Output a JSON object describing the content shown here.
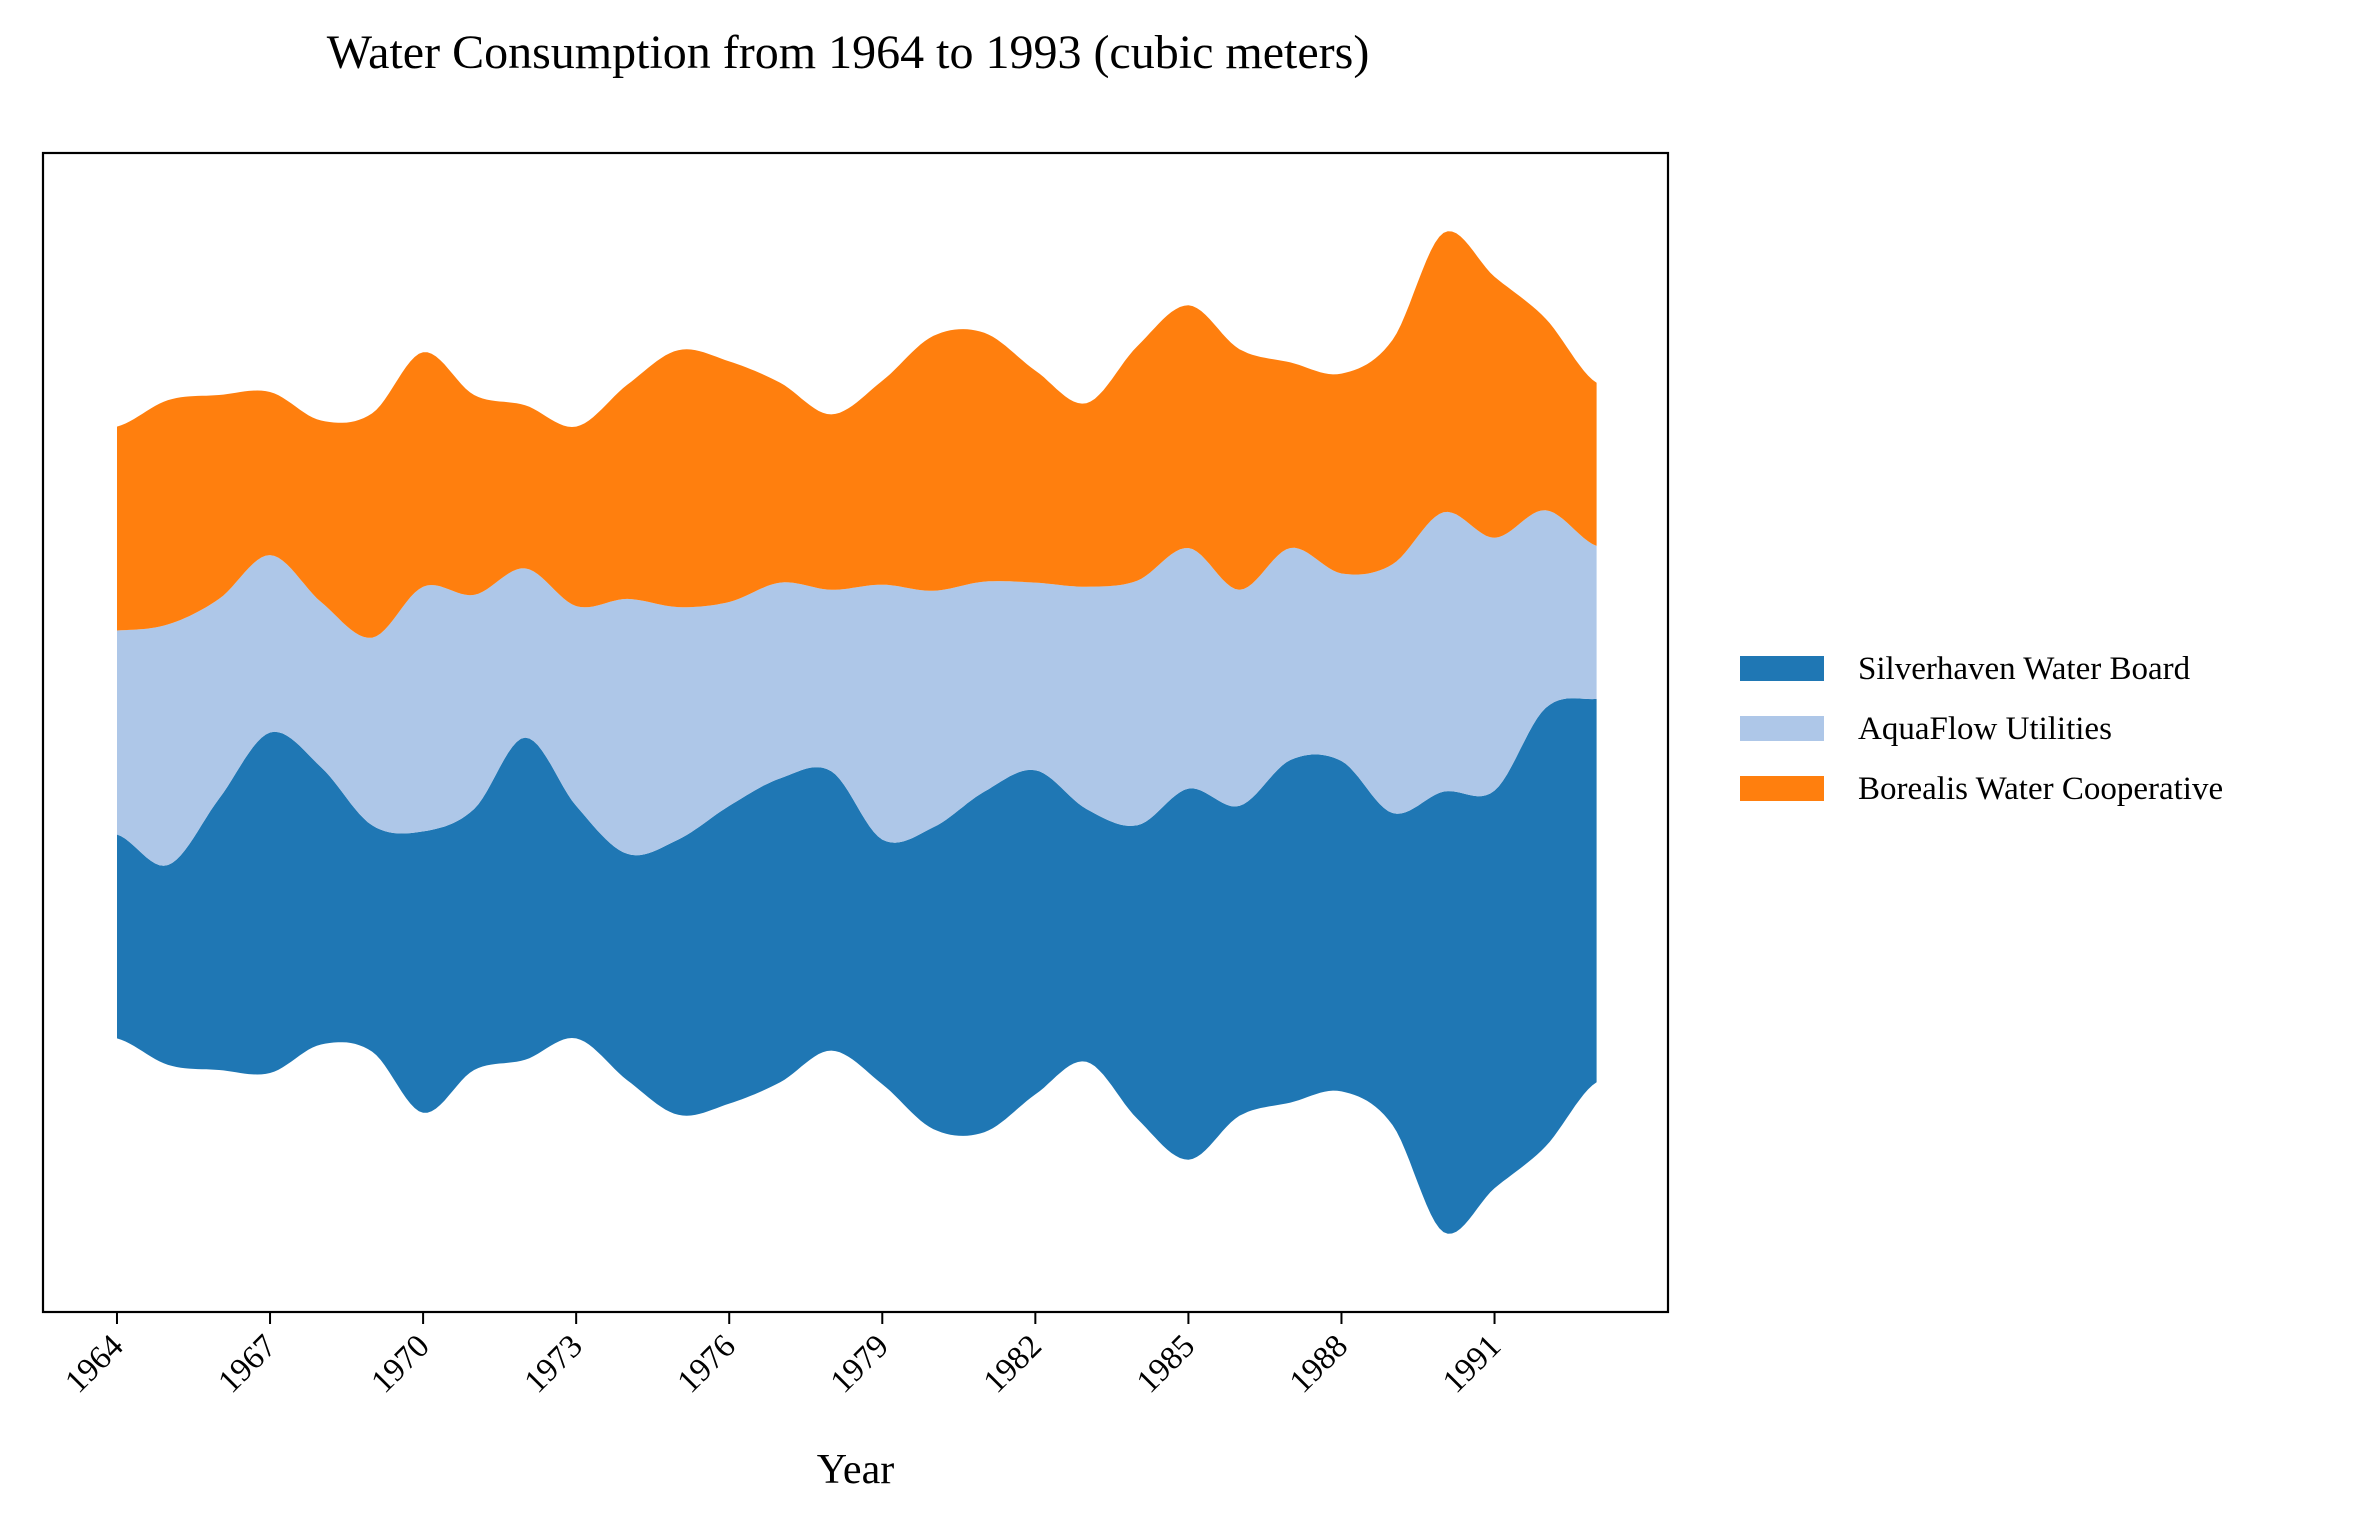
{
  "chart_data": {
    "type": "area",
    "subtype": "streamgraph",
    "title": "Water Consumption from 1964 to 1993 (cubic meters)",
    "xlabel": "Year",
    "ylabel": "",
    "x_ticks": [
      "1964",
      "1967",
      "1970",
      "1973",
      "1976",
      "1979",
      "1982",
      "1985",
      "1988",
      "1991"
    ],
    "x": [
      1964,
      1965,
      1966,
      1967,
      1968,
      1969,
      1970,
      1971,
      1972,
      1973,
      1974,
      1975,
      1976,
      1977,
      1978,
      1979,
      1980,
      1981,
      1982,
      1983,
      1984,
      1985,
      1986,
      1987,
      1988,
      1989,
      1990,
      1991,
      1992,
      1993
    ],
    "xlim": [
      1962.55,
      1994.4
    ],
    "y_ticks_shown": false,
    "baseline": "symmetric",
    "legend_position": "right",
    "grid": false,
    "series": [
      {
        "name": "Silverhaven Water Board",
        "color": "#1f77b4",
        "values": [
          100,
          98,
          133,
          167,
          136,
          111,
          138,
          128,
          158,
          114,
          111,
          135,
          146,
          149,
          137,
          120,
          148,
          167,
          159,
          124,
          144,
          182,
          152,
          168,
          162,
          153,
          216,
          195,
          215,
          188
        ]
      },
      {
        "name": "AquaFlow Utilities",
        "color": "#aec7e8",
        "values": [
          100,
          118,
          98,
          87,
          81,
          92,
          120,
          105,
          83,
          98,
          125,
          114,
          100,
          96,
          89,
          125,
          116,
          103,
          92,
          109,
          120,
          118,
          106,
          104,
          92,
          122,
          137,
          124,
          97,
          75
        ]
      },
      {
        "name": "Borealis Water Cooperative",
        "color": "#ff7f0e",
        "values": [
          100,
          110,
          100,
          80,
          89,
          110,
          115,
          98,
          80,
          88,
          105,
          126,
          118,
          98,
          86,
          100,
          125,
          122,
          104,
          90,
          115,
          119,
          118,
          91,
          98,
          110,
          137,
          128,
          94,
          80
        ]
      }
    ]
  }
}
